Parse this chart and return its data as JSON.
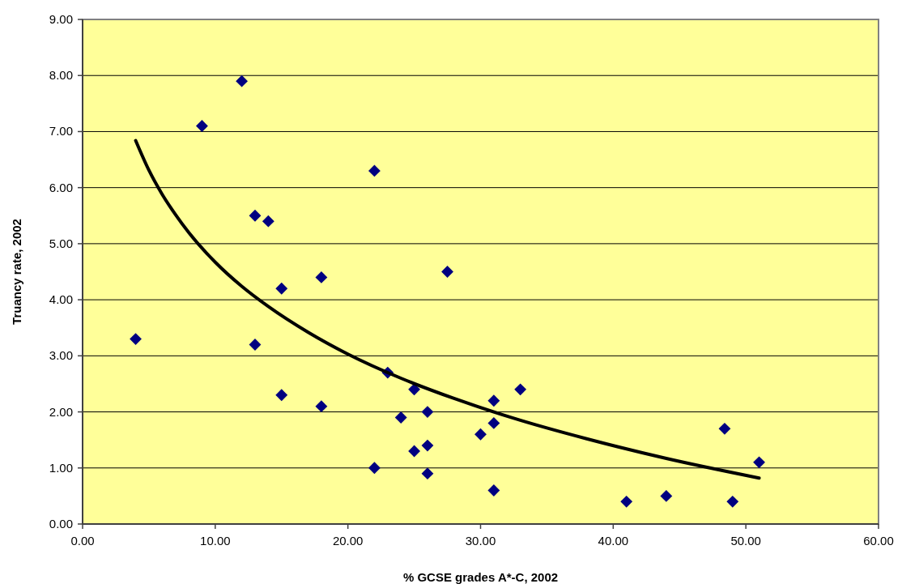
{
  "chart_data": {
    "type": "scatter",
    "xlabel": "% GCSE grades A*-C, 2002",
    "ylabel": "Truancy rate, 2002",
    "xlim": [
      0,
      60
    ],
    "ylim": [
      0,
      9
    ],
    "xticks": [
      {
        "value": 0,
        "label": "0.00"
      },
      {
        "value": 10,
        "label": "10.00"
      },
      {
        "value": 20,
        "label": "20.00"
      },
      {
        "value": 30,
        "label": "30.00"
      },
      {
        "value": 40,
        "label": "40.00"
      },
      {
        "value": 50,
        "label": "50.00"
      },
      {
        "value": 60,
        "label": "60.00"
      }
    ],
    "yticks": [
      {
        "value": 0,
        "label": "0.00"
      },
      {
        "value": 1,
        "label": "1.00"
      },
      {
        "value": 2,
        "label": "2.00"
      },
      {
        "value": 3,
        "label": "3.00"
      },
      {
        "value": 4,
        "label": "4.00"
      },
      {
        "value": 5,
        "label": "5.00"
      },
      {
        "value": 6,
        "label": "6.00"
      },
      {
        "value": 7,
        "label": "7.00"
      },
      {
        "value": 8,
        "label": "8.00"
      },
      {
        "value": 9,
        "label": "9.00"
      }
    ],
    "grid": "y",
    "series": [
      {
        "marker": "diamond",
        "color": "#000080",
        "x": [
          12,
          9,
          13,
          14,
          15,
          18,
          4,
          13,
          15,
          18,
          22,
          27.5,
          23,
          25,
          26,
          24,
          25,
          26,
          22,
          26,
          31,
          31,
          30,
          31,
          33,
          41,
          44,
          48.4,
          49,
          51
        ],
        "values": [
          7.9,
          7.1,
          5.5,
          5.4,
          4.2,
          4.4,
          3.3,
          3.2,
          2.3,
          2.1,
          6.3,
          4.5,
          2.7,
          2.4,
          2.0,
          1.9,
          1.3,
          1.4,
          1.0,
          0.9,
          2.2,
          1.8,
          1.6,
          0.6,
          2.4,
          0.4,
          0.5,
          1.7,
          0.4,
          1.1
        ]
      },
      {
        "type": "line",
        "marker": "none",
        "color": "#000000",
        "x": [
          4,
          5,
          6,
          7,
          8,
          10,
          12,
          14,
          17,
          20,
          24,
          28,
          33,
          38,
          44,
          51
        ],
        "values": [
          6.84,
          6.31,
          5.88,
          5.52,
          5.2,
          4.67,
          4.24,
          3.88,
          3.42,
          3.03,
          2.6,
          2.24,
          1.85,
          1.52,
          1.17,
          0.82
        ]
      }
    ]
  }
}
